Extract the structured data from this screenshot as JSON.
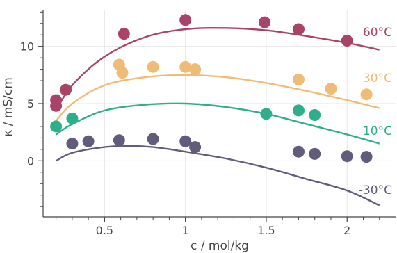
{
  "chart_data": {
    "type": "scatter",
    "xlabel": "c / mol/kg",
    "ylabel": "κ / mS/cm",
    "xlim": [
      0.12,
      2.3
    ],
    "ylim": [
      -4.9,
      13.2
    ],
    "x_ticks": [
      0.5,
      1,
      1.5,
      2
    ],
    "x_tick_labels": [
      "0.5",
      "1",
      "1.5",
      "2"
    ],
    "y_ticks": [
      0,
      5,
      10
    ],
    "y_tick_labels": [
      "0",
      "5",
      "10"
    ],
    "grid": true,
    "legend": "none (series labelled directly at right end of curves)",
    "series": [
      {
        "name": "60°C",
        "color": "#a94368",
        "points": [
          [
            0.2,
            4.8
          ],
          [
            0.2,
            5.3
          ],
          [
            0.26,
            6.2
          ],
          [
            0.62,
            11.1
          ],
          [
            1.0,
            12.3
          ],
          [
            1.49,
            12.1
          ],
          [
            1.7,
            11.5
          ],
          [
            2.0,
            10.5
          ]
        ],
        "fit": [
          [
            0.2,
            4.4
          ],
          [
            0.3,
            6.6
          ],
          [
            0.5,
            9.1
          ],
          [
            0.75,
            10.8
          ],
          [
            1.0,
            11.5
          ],
          [
            1.25,
            11.6
          ],
          [
            1.5,
            11.4
          ],
          [
            1.75,
            10.9
          ],
          [
            2.0,
            10.3
          ],
          [
            2.2,
            9.7
          ]
        ]
      },
      {
        "name": "30°C",
        "color": "#efbc78",
        "points": [
          [
            0.59,
            8.4
          ],
          [
            0.61,
            7.7
          ],
          [
            0.8,
            8.2
          ],
          [
            1.0,
            8.2
          ],
          [
            1.06,
            8.0
          ],
          [
            1.7,
            7.1
          ],
          [
            1.9,
            6.3
          ],
          [
            2.12,
            5.8
          ]
        ],
        "fit": [
          [
            0.2,
            3.5
          ],
          [
            0.3,
            5.0
          ],
          [
            0.5,
            6.6
          ],
          [
            0.75,
            7.3
          ],
          [
            1.0,
            7.5
          ],
          [
            1.25,
            7.3
          ],
          [
            1.5,
            6.8
          ],
          [
            1.75,
            6.1
          ],
          [
            2.0,
            5.3
          ],
          [
            2.2,
            4.6
          ]
        ]
      },
      {
        "name": "10°C",
        "color": "#2fae8c",
        "points": [
          [
            0.2,
            3.0
          ],
          [
            0.3,
            3.7
          ],
          [
            1.5,
            4.1
          ],
          [
            1.7,
            4.4
          ],
          [
            1.8,
            4.0
          ]
        ],
        "fit": [
          [
            0.2,
            2.3
          ],
          [
            0.3,
            3.2
          ],
          [
            0.5,
            4.4
          ],
          [
            0.75,
            4.9
          ],
          [
            1.0,
            5.0
          ],
          [
            1.25,
            4.7
          ],
          [
            1.5,
            4.1
          ],
          [
            1.75,
            3.2
          ],
          [
            2.0,
            2.3
          ],
          [
            2.2,
            1.5
          ]
        ]
      },
      {
        "name": "-30°C",
        "color": "#625c7c",
        "points": [
          [
            0.3,
            1.5
          ],
          [
            0.4,
            1.7
          ],
          [
            0.59,
            1.8
          ],
          [
            0.8,
            1.9
          ],
          [
            1.0,
            1.7
          ],
          [
            1.06,
            1.2
          ],
          [
            1.7,
            0.8
          ],
          [
            1.8,
            0.6
          ],
          [
            2.0,
            0.4
          ],
          [
            2.12,
            0.35
          ]
        ],
        "fit": [
          [
            0.2,
            0.0
          ],
          [
            0.3,
            0.7
          ],
          [
            0.5,
            1.2
          ],
          [
            0.65,
            1.3
          ],
          [
            0.8,
            1.2
          ],
          [
            1.0,
            0.8
          ],
          [
            1.25,
            0.2
          ],
          [
            1.5,
            -0.6
          ],
          [
            1.75,
            -1.6
          ],
          [
            2.0,
            -2.6
          ],
          [
            2.2,
            -3.9
          ]
        ]
      }
    ]
  }
}
